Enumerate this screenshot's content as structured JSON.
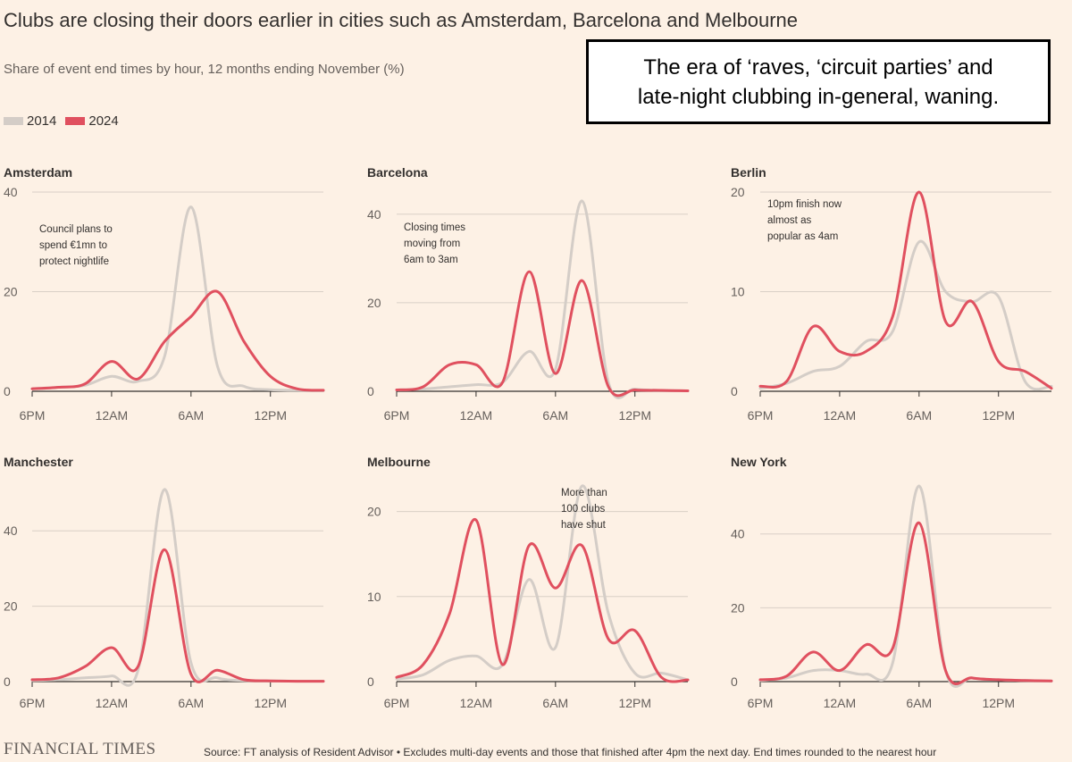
{
  "header": {
    "title": "Clubs are closing their doors earlier in cities such as Amsterdam, Barcelona and Melbourne",
    "subtitle": "Share of event end times by hour, 12 months ending November (%)"
  },
  "legend": [
    {
      "label": "2014",
      "color": "#d4cdc7"
    },
    {
      "label": "2024",
      "color": "#e0505f"
    }
  ],
  "callout": {
    "line1": "The era of ‘raves, ‘circuit parties’ and",
    "line2": "late-night clubbing in-general, waning."
  },
  "footer": {
    "logo": "FINANCIAL TIMES",
    "source": "Source: FT analysis of Resident Advisor • Excludes multi-day events and those that finished after 4pm the next day. End times rounded to the nearest hour"
  },
  "colors": {
    "series_2014": "#d4cdc7",
    "series_2024": "#e0505f",
    "grid": "#d9d0c6",
    "axis": "#33302e"
  },
  "chart_data": [
    {
      "type": "line",
      "title": "Amsterdam",
      "x": [
        "6PM",
        "8PM",
        "10PM",
        "12AM",
        "2AM",
        "4AM",
        "6AM",
        "8AM",
        "10AM",
        "12PM",
        "2PM",
        "4PM"
      ],
      "xticks": [
        "6PM",
        "12AM",
        "6AM",
        "12PM"
      ],
      "yticks": [
        0,
        20,
        40
      ],
      "ylim": [
        0,
        40
      ],
      "annotation": [
        "Council plans to",
        "spend €1mn to",
        "protect nightlife"
      ],
      "series": [
        {
          "name": "2014",
          "values": [
            0.5,
            0.8,
            1.2,
            3,
            2,
            7,
            37,
            5,
            1,
            0.3,
            0.2,
            0.1
          ]
        },
        {
          "name": "2024",
          "values": [
            0.5,
            0.8,
            1.5,
            6,
            2.5,
            10,
            15,
            20,
            10,
            3,
            0.5,
            0.2
          ]
        }
      ]
    },
    {
      "type": "line",
      "title": "Barcelona",
      "x": [
        "6PM",
        "8PM",
        "10PM",
        "12AM",
        "2AM",
        "4AM",
        "6AM",
        "8AM",
        "10AM",
        "12PM",
        "2PM",
        "4PM"
      ],
      "xticks": [
        "6PM",
        "12AM",
        "6AM",
        "12PM"
      ],
      "yticks": [
        0,
        20,
        40
      ],
      "ylim": [
        0,
        45
      ],
      "annotation": [
        "Closing times",
        "moving from",
        "6am to 3am"
      ],
      "series": [
        {
          "name": "2014",
          "values": [
            0.3,
            0.5,
            1,
            1.5,
            2,
            9,
            5,
            43,
            2,
            0.5,
            0.2,
            0.1
          ]
        },
        {
          "name": "2024",
          "values": [
            0.3,
            1,
            6,
            6,
            2,
            27,
            4,
            25,
            1,
            0.3,
            0.2,
            0.1
          ]
        }
      ]
    },
    {
      "type": "line",
      "title": "Berlin",
      "x": [
        "6PM",
        "8PM",
        "10PM",
        "12AM",
        "2AM",
        "4AM",
        "6AM",
        "8AM",
        "10AM",
        "12PM",
        "2PM",
        "4PM"
      ],
      "xticks": [
        "6PM",
        "12AM",
        "6AM",
        "12PM"
      ],
      "yticks": [
        0,
        10,
        20
      ],
      "ylim": [
        0,
        20
      ],
      "annotation": [
        "10pm finish now",
        "almost as",
        "popular as 4am"
      ],
      "series": [
        {
          "name": "2014",
          "values": [
            0.3,
            0.8,
            2,
            2.5,
            5,
            6,
            15,
            10,
            9,
            9.5,
            1,
            0.5
          ]
        },
        {
          "name": "2024",
          "values": [
            0.5,
            1,
            6.5,
            4,
            4,
            7.5,
            20,
            7,
            9,
            3,
            2,
            0.3
          ]
        }
      ]
    },
    {
      "type": "line",
      "title": "Manchester",
      "x": [
        "6PM",
        "8PM",
        "10PM",
        "12AM",
        "2AM",
        "4AM",
        "6AM",
        "8AM",
        "10AM",
        "12PM",
        "2PM",
        "4PM"
      ],
      "xticks": [
        "6PM",
        "12AM",
        "6AM",
        "12PM"
      ],
      "yticks": [
        0,
        20,
        40
      ],
      "ylim": [
        0,
        50
      ],
      "series": [
        {
          "name": "2014",
          "values": [
            0.3,
            0.5,
            1,
            1.5,
            3,
            51,
            5,
            1,
            0.3,
            0.2,
            0.1,
            0.1
          ]
        },
        {
          "name": "2024",
          "values": [
            0.5,
            1,
            4,
            9,
            4,
            35,
            2,
            3,
            0.5,
            0.2,
            0.1,
            0.1
          ]
        }
      ]
    },
    {
      "type": "line",
      "title": "Melbourne",
      "x": [
        "6PM",
        "8PM",
        "10PM",
        "12AM",
        "2AM",
        "4AM",
        "6AM",
        "8AM",
        "10AM",
        "12PM",
        "2PM",
        "4PM"
      ],
      "xticks": [
        "6PM",
        "12AM",
        "6AM",
        "12PM"
      ],
      "yticks": [
        0,
        10,
        20
      ],
      "ylim": [
        0,
        23
      ],
      "annotation": [
        "More than",
        "100 clubs",
        "have shut"
      ],
      "series": [
        {
          "name": "2014",
          "values": [
            0.3,
            0.8,
            2.5,
            3,
            2,
            12,
            4,
            23,
            8,
            1,
            1,
            0.2
          ]
        },
        {
          "name": "2024",
          "values": [
            0.5,
            2,
            8,
            19,
            2,
            16,
            11,
            16,
            5,
            6,
            0.5,
            0.2
          ]
        }
      ]
    },
    {
      "type": "line",
      "title": "New York",
      "x": [
        "6PM",
        "8PM",
        "10PM",
        "12AM",
        "2AM",
        "4AM",
        "6AM",
        "8AM",
        "10AM",
        "12PM",
        "2PM",
        "4PM"
      ],
      "xticks": [
        "6PM",
        "12AM",
        "6AM",
        "12PM"
      ],
      "yticks": [
        0,
        20,
        40
      ],
      "ylim": [
        0,
        53
      ],
      "series": [
        {
          "name": "2014",
          "values": [
            0.3,
            1,
            3,
            3,
            2,
            5,
            53,
            3,
            1,
            0.5,
            0.3,
            0.1
          ]
        },
        {
          "name": "2024",
          "values": [
            0.5,
            1.5,
            8,
            3,
            10,
            9,
            43,
            3,
            1,
            0.5,
            0.3,
            0.2
          ]
        }
      ]
    }
  ]
}
